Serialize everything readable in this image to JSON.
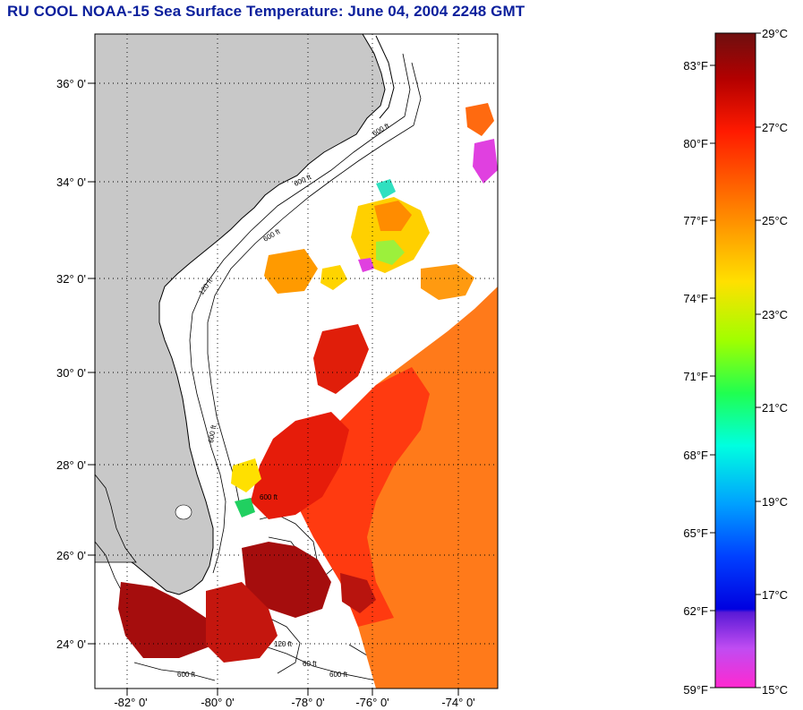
{
  "title": "RU COOL  NOAA-15  Sea Surface Temperature:  June 04, 2004 2248 GMT",
  "map": {
    "lat_labels": [
      "36° 0'",
      "34° 0'",
      "32° 0'",
      "30° 0'",
      "28° 0'",
      "26° 0'",
      "24° 0'"
    ],
    "lon_labels": [
      "-82° 0'",
      "-80° 0'",
      "-78° 0'",
      "-76° 0'",
      "-74° 0'"
    ],
    "contour_labels": [
      "600 ft",
      "600 ft",
      "600 ft",
      "120 ft",
      "600 ft",
      "600 ft",
      "120 ft",
      "60 ft",
      "600 ft",
      "600 ft"
    ],
    "colors": {
      "land": "#c8c8c8",
      "ocean_nodata": "#ffffff",
      "grid": "#000000"
    }
  },
  "colorbar": {
    "fahrenheit_labels": [
      "83°F",
      "80°F",
      "77°F",
      "74°F",
      "71°F",
      "68°F",
      "65°F",
      "62°F",
      "59°F"
    ],
    "celsius_labels": [
      "29°C",
      "27°C",
      "25°C",
      "23°C",
      "21°C",
      "19°C",
      "17°C",
      "15°C"
    ],
    "range_c": [
      15,
      29
    ],
    "range_f": [
      59,
      84.2
    ]
  }
}
